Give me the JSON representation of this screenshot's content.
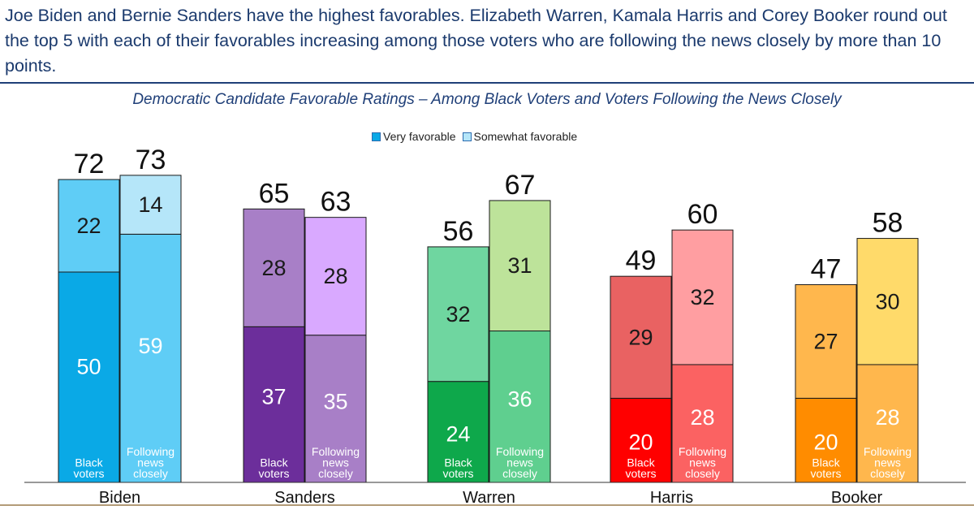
{
  "headline": "Joe Biden and Bernie Sanders have the highest favorables. Elizabeth Warren, Kamala Harris and Corey Booker round out the top 5 with each of their favorables increasing among those voters who are following the news closely by more than 10 points.",
  "legend": {
    "very": "Very favorable",
    "somewhat": "Somewhat favorable",
    "very_color": "#0aa9e6",
    "somewhat_color": "#b5e6f9"
  },
  "chart_data": {
    "type": "bar",
    "stacked": true,
    "title": "Democratic Candidate Favorable Ratings – Among Black Voters and Voters Following the News Closely",
    "categories": [
      "Biden",
      "Sanders",
      "Warren",
      "Harris",
      "Booker"
    ],
    "subgroups": [
      "Black voters",
      "Following news closely"
    ],
    "series": [
      {
        "name": "Very favorable",
        "values": [
          [
            50,
            59
          ],
          [
            37,
            35
          ],
          [
            24,
            36
          ],
          [
            20,
            28
          ],
          [
            20,
            28
          ]
        ]
      },
      {
        "name": "Somewhat favorable",
        "values": [
          [
            22,
            14
          ],
          [
            28,
            28
          ],
          [
            32,
            31
          ],
          [
            29,
            32
          ],
          [
            27,
            30
          ]
        ]
      }
    ],
    "totals": [
      [
        72,
        73
      ],
      [
        65,
        63
      ],
      [
        56,
        67
      ],
      [
        49,
        60
      ],
      [
        47,
        58
      ]
    ],
    "ylim": [
      0,
      100
    ],
    "colors": [
      {
        "very": [
          "#0aa9e6",
          "#5fcdf6"
        ],
        "somewhat": [
          "#5fcdf6",
          "#b5e6f9"
        ]
      },
      {
        "very": [
          "#6c2e9b",
          "#a87fc7"
        ],
        "somewhat": [
          "#a87fc7",
          "#d9a9ff"
        ]
      },
      {
        "very": [
          "#0ea84b",
          "#5fcf8f"
        ],
        "somewhat": [
          "#6fd6a0",
          "#bde39a"
        ]
      },
      {
        "very": [
          "#ff0000",
          "#fb6262"
        ],
        "somewhat": [
          "#e96262",
          "#ff9ea1"
        ]
      },
      {
        "very": [
          "#ff8c00",
          "#ffb74d"
        ],
        "somewhat": [
          "#ffb74d",
          "#ffda6a"
        ]
      }
    ]
  }
}
